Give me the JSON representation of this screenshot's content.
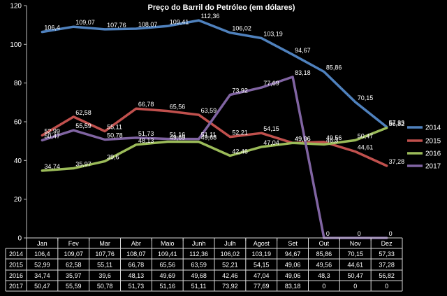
{
  "chart_data": {
    "type": "line",
    "title": "Preço do Barril do Petróleo (em dólares)",
    "xlabel": "",
    "ylabel": "",
    "ylim": [
      0,
      120
    ],
    "yticks": [
      0,
      20,
      40,
      60,
      80,
      100,
      120
    ],
    "grid": false,
    "legend": "right",
    "categories": [
      "Jan",
      "Fev",
      "Mar",
      "Abr",
      "Maio",
      "Junh",
      "Julh",
      "Agost",
      "Set",
      "Out",
      "Nov",
      "Dez"
    ],
    "series": [
      {
        "name": "2014",
        "color": "#4F81BD",
        "values": [
          106.4,
          109.07,
          107.76,
          108.07,
          109.41,
          112.36,
          106.02,
          103.19,
          94.67,
          85.86,
          70.15,
          57.33
        ],
        "labels": [
          "106,4",
          "109,07",
          "107,76",
          "108,07",
          "109,41",
          "112,36",
          "106,02",
          "103,19",
          "94,67",
          "85,86",
          "70,15",
          "57,33"
        ]
      },
      {
        "name": "2015",
        "color": "#C0504D",
        "values": [
          52.99,
          62.58,
          55.11,
          66.78,
          65.56,
          63.59,
          52.21,
          54.15,
          49.06,
          49.56,
          44.61,
          37.28
        ],
        "labels": [
          "52,99",
          "62,58",
          "55,11",
          "66,78",
          "65,56",
          "63,59",
          "52,21",
          "54,15",
          "49,06",
          "49,56",
          "44,61",
          "37,28"
        ]
      },
      {
        "name": "2016",
        "color": "#9BBB59",
        "values": [
          34.74,
          35.97,
          39.6,
          48.13,
          49.69,
          49.68,
          42.46,
          47.04,
          49.06,
          48.3,
          50.47,
          56.82
        ],
        "labels": [
          "34,74",
          "35,97",
          "39,6",
          "48,13",
          "49,69",
          "49,68",
          "42,46",
          "47,04",
          "49,06",
          "48,3",
          "50,47",
          "56,82"
        ]
      },
      {
        "name": "2017",
        "color": "#8064A2",
        "values": [
          50.47,
          55.59,
          50.78,
          51.73,
          51.16,
          51.11,
          73.92,
          77.69,
          83.18,
          0,
          0,
          0
        ],
        "labels": [
          "50,47",
          "55,59",
          "50,78",
          "51,73",
          "51,16",
          "51,11",
          "73,92",
          "77,69",
          "83,18",
          "0",
          "0",
          "0"
        ]
      }
    ]
  }
}
